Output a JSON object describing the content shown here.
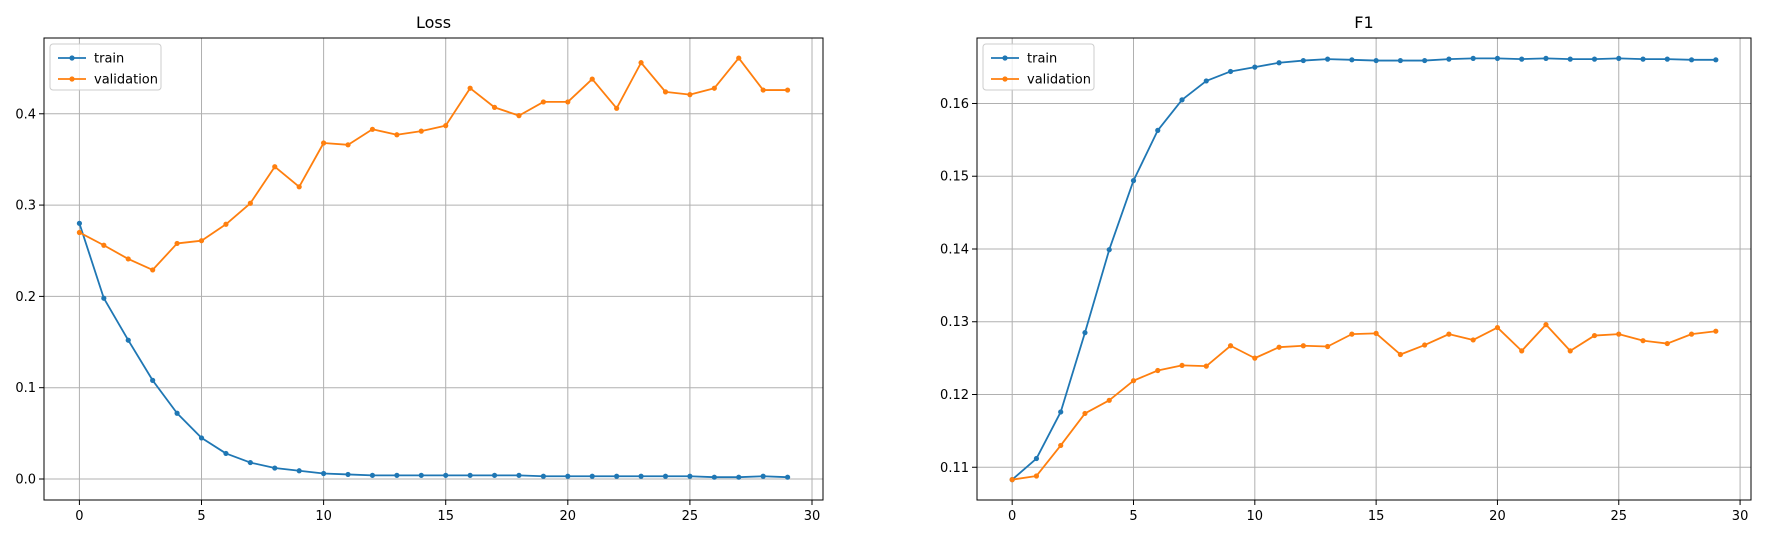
{
  "chart_data": [
    {
      "type": "line",
      "title": "Loss",
      "xlabel": "",
      "ylabel": "",
      "x": [
        0,
        1,
        2,
        3,
        4,
        5,
        6,
        7,
        8,
        9,
        10,
        11,
        12,
        13,
        14,
        15,
        16,
        17,
        18,
        19,
        20,
        21,
        22,
        23,
        24,
        25,
        26,
        27,
        28,
        29
      ],
      "xlim": [
        -1.45,
        30.45
      ],
      "ylim": [
        -0.023,
        0.483
      ],
      "xticks": [
        0,
        5,
        10,
        15,
        20,
        25,
        30
      ],
      "xtick_labels": [
        "0",
        "5",
        "10",
        "15",
        "20",
        "25",
        "30"
      ],
      "yticks": [
        0.0,
        0.1,
        0.2,
        0.3,
        0.4
      ],
      "ytick_labels": [
        "0.0",
        "0.1",
        "0.2",
        "0.3",
        "0.4"
      ],
      "grid": true,
      "legend_position": "upper-left",
      "series": [
        {
          "name": "train",
          "color": "#1f77b4",
          "values": [
            0.28,
            0.198,
            0.152,
            0.108,
            0.072,
            0.045,
            0.028,
            0.018,
            0.012,
            0.009,
            0.006,
            0.005,
            0.004,
            0.004,
            0.004,
            0.004,
            0.004,
            0.004,
            0.004,
            0.003,
            0.003,
            0.003,
            0.003,
            0.003,
            0.003,
            0.003,
            0.002,
            0.002,
            0.003,
            0.002
          ]
        },
        {
          "name": "validation",
          "color": "#ff7f0e",
          "values": [
            0.27,
            0.256,
            0.241,
            0.229,
            0.258,
            0.261,
            0.279,
            0.302,
            0.342,
            0.32,
            0.368,
            0.366,
            0.383,
            0.377,
            0.381,
            0.387,
            0.428,
            0.407,
            0.398,
            0.413,
            0.413,
            0.438,
            0.406,
            0.456,
            0.424,
            0.421,
            0.428,
            0.461,
            0.426,
            0.426
          ]
        }
      ]
    },
    {
      "type": "line",
      "title": "F1",
      "xlabel": "",
      "ylabel": "",
      "x": [
        0,
        1,
        2,
        3,
        4,
        5,
        6,
        7,
        8,
        9,
        10,
        11,
        12,
        13,
        14,
        15,
        16,
        17,
        18,
        19,
        20,
        21,
        22,
        23,
        24,
        25,
        26,
        27,
        28,
        29
      ],
      "xlim": [
        -1.45,
        30.45
      ],
      "ylim": [
        0.1055,
        0.169
      ],
      "xticks": [
        0,
        5,
        10,
        15,
        20,
        25,
        30
      ],
      "xtick_labels": [
        "0",
        "5",
        "10",
        "15",
        "20",
        "25",
        "30"
      ],
      "yticks": [
        0.11,
        0.12,
        0.13,
        0.14,
        0.15,
        0.16
      ],
      "ytick_labels": [
        "0.11",
        "0.12",
        "0.13",
        "0.14",
        "0.15",
        "0.16"
      ],
      "grid": true,
      "legend_position": "upper-left",
      "series": [
        {
          "name": "train",
          "color": "#1f77b4",
          "values": [
            0.1083,
            0.1112,
            0.1176,
            0.1285,
            0.1399,
            0.1494,
            0.1563,
            0.1605,
            0.1631,
            0.1644,
            0.165,
            0.1656,
            0.1659,
            0.1661,
            0.166,
            0.1659,
            0.1659,
            0.1659,
            0.1661,
            0.1662,
            0.1662,
            0.1661,
            0.1662,
            0.1661,
            0.1661,
            0.1662,
            0.1661,
            0.1661,
            0.166,
            0.166
          ]
        },
        {
          "name": "validation",
          "color": "#ff7f0e",
          "values": [
            0.1083,
            0.1088,
            0.113,
            0.1174,
            0.1192,
            0.1219,
            0.1233,
            0.124,
            0.1239,
            0.1267,
            0.125,
            0.1265,
            0.1267,
            0.1266,
            0.1283,
            0.1284,
            0.1255,
            0.1268,
            0.1283,
            0.1275,
            0.1292,
            0.126,
            0.1296,
            0.126,
            0.1281,
            0.1283,
            0.1274,
            0.127,
            0.1283,
            0.1287
          ]
        }
      ]
    }
  ]
}
